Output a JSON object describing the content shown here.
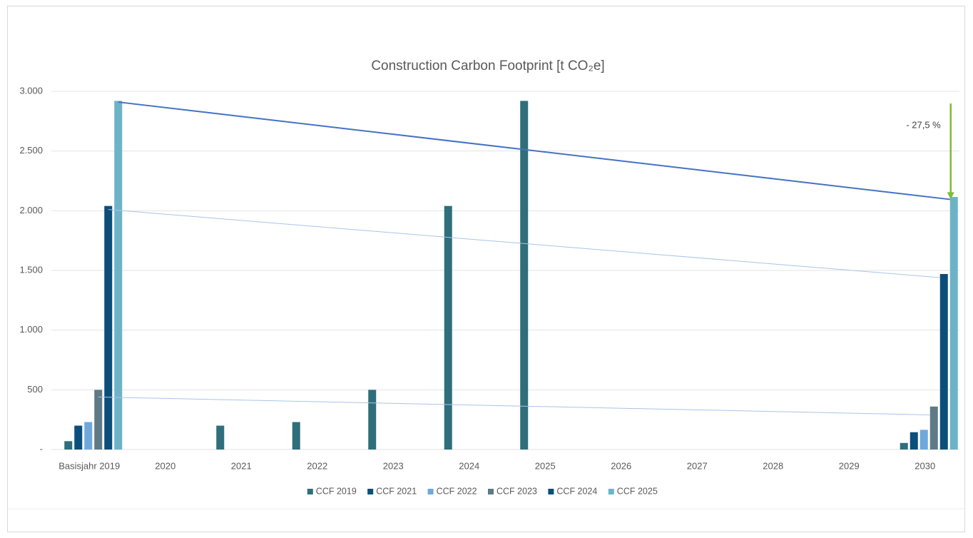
{
  "chart_data": {
    "type": "bar",
    "title": "Construction Carbon Footprint [t CO₂e]",
    "categories": [
      "Basisjahr 2019",
      "2020",
      "2021",
      "2022",
      "2023",
      "2024",
      "2025",
      "2026",
      "2027",
      "2028",
      "2029",
      "2030"
    ],
    "series": [
      {
        "name": "CCF 2019",
        "color": "#2f6e7b",
        "values": [
          70,
          null,
          200,
          230,
          500,
          2040,
          2920,
          null,
          null,
          null,
          null,
          55
        ]
      },
      {
        "name": "CCF 2021",
        "color": "#0b4f7c",
        "values": [
          200,
          null,
          null,
          null,
          null,
          null,
          null,
          null,
          null,
          null,
          null,
          145
        ]
      },
      {
        "name": "CCF 2022",
        "color": "#6fa8dc",
        "values": [
          230,
          null,
          null,
          null,
          null,
          null,
          null,
          null,
          null,
          null,
          null,
          165
        ]
      },
      {
        "name": "CCF 2023",
        "color": "#5f7a87",
        "values": [
          500,
          null,
          null,
          null,
          null,
          null,
          null,
          null,
          null,
          null,
          null,
          360
        ],
        "trend": [
          440,
          290
        ],
        "trend_color": "#a9c4e8"
      },
      {
        "name": "CCF 2024",
        "color": "#0c4e7a",
        "values": [
          2040,
          null,
          null,
          null,
          null,
          null,
          null,
          null,
          null,
          null,
          null,
          1470
        ],
        "trend": [
          2010,
          1440
        ],
        "trend_color": "#a9c4e8"
      },
      {
        "name": "CCF 2025",
        "color": "#6db3c7",
        "values": [
          2920,
          null,
          null,
          null,
          null,
          null,
          null,
          null,
          null,
          null,
          null,
          2115
        ],
        "trend": [
          2910,
          2095
        ],
        "trend_color": "#4472c4"
      }
    ],
    "annotation": "- 27,5 %",
    "annotation_color": "#7dbb3c",
    "ylim": [
      0,
      3000
    ],
    "yticks": [
      {
        "value": 0,
        "label": "-"
      },
      500,
      {
        "value": 1000,
        "label": "1.000"
      },
      {
        "value": 1500,
        "label": "1.500"
      },
      {
        "value": 2000,
        "label": "2.000"
      },
      {
        "value": 2500,
        "label": "2.500"
      },
      {
        "value": 3000,
        "label": "3.000"
      }
    ],
    "grid": true,
    "legend": "bottom"
  }
}
